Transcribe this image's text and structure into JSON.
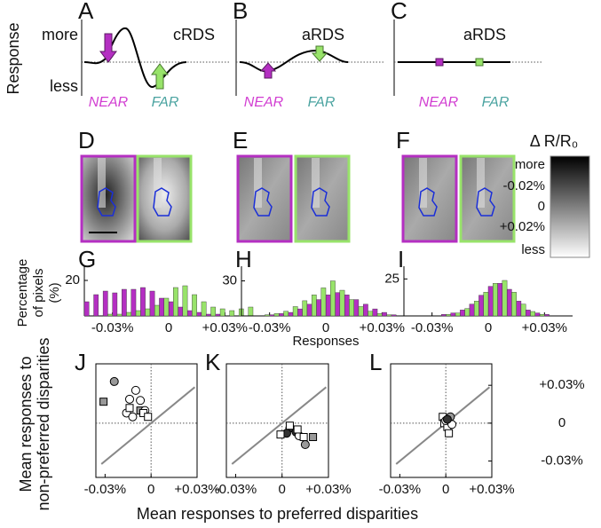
{
  "top_row": {
    "y_label": "Response",
    "more": "more",
    "less": "less",
    "panels": [
      {
        "letter": "A",
        "title": "cRDS",
        "near": "NEAR",
        "far": "FAR"
      },
      {
        "letter": "B",
        "title": "aRDS",
        "near": "NEAR",
        "far": "FAR"
      },
      {
        "letter": "C",
        "title": "aRDS",
        "near": "NEAR",
        "far": "FAR"
      }
    ]
  },
  "image_row": {
    "letters": [
      "D",
      "E",
      "F"
    ]
  },
  "colorbar": {
    "title": "Δ R/R₀",
    "labels": [
      "more",
      "-0.02%",
      "0",
      "+0.02%",
      "less"
    ]
  },
  "chart_data": [
    {
      "type": "histogram",
      "letter": "G",
      "y_label": [
        "Percentage",
        "of pixels",
        "(%)"
      ],
      "bins": [
        -0.045,
        -0.04,
        -0.035,
        -0.03,
        -0.025,
        -0.02,
        -0.015,
        -0.01,
        -0.005,
        0,
        0.005,
        0.01,
        0.015,
        0.02,
        0.025,
        0.03,
        0.035,
        0.04,
        0.045
      ],
      "series": [
        {
          "color": "#b42fc2",
          "values": [
            8,
            12,
            14,
            13,
            15,
            15,
            16,
            14,
            10,
            8,
            5,
            3,
            2,
            1,
            1,
            0,
            0,
            0
          ]
        },
        {
          "color": "#98e36a",
          "values": [
            0,
            0,
            1,
            1,
            2,
            3,
            4,
            6,
            10,
            16,
            17,
            12,
            8,
            5,
            4,
            3,
            4,
            5
          ]
        }
      ],
      "xlim": [
        -0.045,
        0.045
      ],
      "xticks": [
        {
          "value": -0.03,
          "label": "-0.03%"
        },
        0,
        {
          "value": 0.03,
          "label": "+0.03%"
        }
      ],
      "ylim": [
        0,
        25
      ],
      "yticks": [
        20
      ]
    },
    {
      "type": "histogram",
      "letter": "H",
      "x_label": "Responses",
      "bins": [
        -0.045,
        -0.04,
        -0.035,
        -0.03,
        -0.025,
        -0.02,
        -0.015,
        -0.01,
        -0.005,
        0,
        0.005,
        0.01,
        0.015,
        0.02,
        0.025,
        0.03,
        0.035,
        0.04,
        0.045
      ],
      "series": [
        {
          "color": "#b42fc2",
          "values": [
            0,
            0,
            0,
            1,
            2,
            3,
            6,
            10,
            14,
            18,
            20,
            18,
            14,
            10,
            6,
            3,
            1,
            0
          ]
        },
        {
          "color": "#98e36a",
          "values": [
            0,
            0,
            1,
            2,
            4,
            8,
            13,
            18,
            24,
            30,
            22,
            14,
            8,
            4,
            2,
            1,
            0,
            0
          ]
        }
      ],
      "xlim": [
        -0.045,
        0.045
      ],
      "xticks": [
        {
          "value": -0.03,
          "label": "-0.03%"
        },
        0,
        {
          "value": 0.03,
          "label": "+0.03%"
        }
      ],
      "ylim": [
        0,
        38
      ],
      "yticks": [
        30
      ]
    },
    {
      "type": "histogram",
      "letter": "I",
      "bins": [
        -0.045,
        -0.04,
        -0.035,
        -0.03,
        -0.025,
        -0.02,
        -0.015,
        -0.01,
        -0.005,
        0,
        0.005,
        0.01,
        0.015,
        0.02,
        0.025,
        0.03,
        0.035,
        0.04,
        0.045
      ],
      "series": [
        {
          "color": "#b42fc2",
          "values": [
            0,
            0,
            0,
            0,
            1,
            2,
            4,
            8,
            14,
            20,
            22,
            18,
            10,
            4,
            2,
            1,
            0,
            0
          ]
        },
        {
          "color": "#98e36a",
          "values": [
            0,
            0,
            0,
            0,
            1,
            2,
            5,
            10,
            16,
            22,
            24,
            16,
            8,
            3,
            1,
            0,
            0,
            0
          ]
        }
      ],
      "xlim": [
        -0.045,
        0.045
      ],
      "xticks": [
        {
          "value": -0.03,
          "label": "-0.03%"
        },
        0,
        {
          "value": 0.03,
          "label": "+0.03%"
        }
      ],
      "ylim": [
        0,
        30
      ],
      "yticks": [
        25
      ]
    },
    {
      "type": "scatter",
      "letter": "J",
      "y_label": [
        "Mean responses to",
        "non-preferred disparities"
      ],
      "xlim": [
        -0.036,
        0.03
      ],
      "ylim": [
        -0.043,
        0.047
      ],
      "xticks": [
        {
          "value": -0.03,
          "label": "-0.03%"
        },
        0,
        {
          "value": 0.03,
          "label": "+0.03%"
        }
      ],
      "series": [
        {
          "marker": "circle",
          "color": "#999999",
          "x": [
            -0.024
          ],
          "y": [
            0.033
          ]
        },
        {
          "marker": "square",
          "color": "#999999",
          "x": [
            -0.031,
            -0.007
          ],
          "y": [
            0.017,
            0.01
          ]
        },
        {
          "marker": "circle",
          "color": "#ffffff",
          "x": [
            -0.01,
            -0.014,
            -0.007,
            -0.016,
            -0.012,
            -0.004
          ],
          "y": [
            0.026,
            0.019,
            0.018,
            0.008,
            0.005,
            0.01
          ]
        },
        {
          "marker": "square",
          "color": "#ffffff",
          "x": [
            -0.014,
            -0.005,
            -0.002
          ],
          "y": [
            0.012,
            0.008,
            0.005
          ]
        }
      ]
    },
    {
      "type": "scatter",
      "letter": "K",
      "x_label": "Mean responses to preferred disparities",
      "xlim": [
        -0.036,
        0.03
      ],
      "ylim": [
        -0.043,
        0.047
      ],
      "xticks": [
        {
          "value": -0.03,
          "label": "-0.03%"
        },
        0,
        {
          "value": 0.03,
          "label": "+0.03%"
        }
      ],
      "series": [
        {
          "marker": "circle",
          "color": "#333333",
          "x": [
            0.005,
            0.009,
            0.003
          ],
          "y": [
            -0.004,
            -0.007,
            -0.008
          ]
        },
        {
          "marker": "circle",
          "color": "#ffffff",
          "x": [
            0.011
          ],
          "y": [
            -0.01
          ]
        },
        {
          "marker": "circle",
          "color": "#999999",
          "x": [
            0.015
          ],
          "y": [
            -0.017
          ]
        },
        {
          "marker": "square",
          "color": "#ffffff",
          "x": [
            -0.001,
            0.01,
            0.014,
            0.005
          ],
          "y": [
            -0.009,
            -0.005,
            -0.011,
            -0.002
          ]
        },
        {
          "marker": "square",
          "color": "#999999",
          "x": [
            0.02
          ],
          "y": [
            -0.011
          ]
        }
      ]
    },
    {
      "type": "scatter",
      "letter": "L",
      "xlim": [
        -0.036,
        0.03
      ],
      "ylim": [
        -0.043,
        0.047
      ],
      "xticks": [
        {
          "value": -0.03,
          "label": "-0.03%"
        },
        0,
        {
          "value": 0.03,
          "label": "+0.03%"
        }
      ],
      "yticks": [
        {
          "value": 0.03,
          "label": "+0.03%"
        },
        0,
        {
          "value": -0.03,
          "label": "-0.03%"
        }
      ],
      "series": [
        {
          "marker": "square",
          "color": "#ffffff",
          "x": [
            -0.002,
            -0.001,
            0.001,
            0.002
          ],
          "y": [
            0.005,
            0,
            -0.003,
            -0.008
          ]
        },
        {
          "marker": "circle",
          "color": "#ffffff",
          "x": [
            0,
            0.004
          ],
          "y": [
            0.002,
            -0.001
          ]
        },
        {
          "marker": "circle",
          "color": "#999999",
          "x": [
            0.003
          ],
          "y": [
            0.005
          ]
        },
        {
          "marker": "circle",
          "color": "#333333",
          "x": [
            0.001
          ],
          "y": [
            0.003
          ]
        }
      ]
    }
  ]
}
